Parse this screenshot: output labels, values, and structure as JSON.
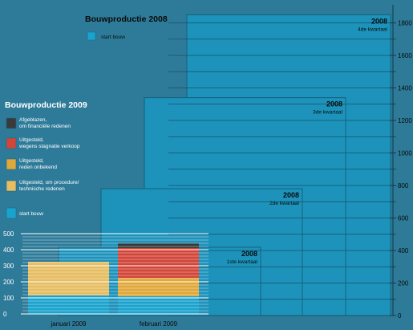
{
  "chart_data": [
    {
      "type": "bar",
      "title": "Bouwproductie 2008",
      "legend": [
        "start bouw"
      ],
      "yticks": [
        "0",
        "200",
        "400",
        "600",
        "800",
        "1000",
        "1200",
        "1400",
        "1600",
        "1800"
      ],
      "ylim": [
        0,
        1850
      ],
      "bars": [
        {
          "year": "2008",
          "quarter": "1ste kwartaal",
          "value": 420
        },
        {
          "year": "2008",
          "quarter": "2de kwartaal",
          "value": 780
        },
        {
          "year": "2008",
          "quarter": "3de kwartaal",
          "value": 1340
        },
        {
          "year": "2008",
          "quarter": "4de kwartaal",
          "value": 1850
        }
      ]
    },
    {
      "type": "bar",
      "stacked": true,
      "title": "Bouwproductie 2009",
      "yticks": [
        "0",
        "100",
        "200",
        "300",
        "400",
        "500"
      ],
      "ylim": [
        0,
        500
      ],
      "categories": [
        "januari 2009",
        "februari 2009"
      ],
      "legend": [
        {
          "line1": "Afgeblazen,",
          "line2": "om financiële redenen",
          "color": "#3a3a3a"
        },
        {
          "line1": "Uitgesteld,",
          "line2": "wegens stagnatie verkoop",
          "color": "#d2463a"
        },
        {
          "line1": "Uitgesteld,",
          "line2": "reden onbekend",
          "color": "#e0a83a"
        },
        {
          "line1": "Uitgesteld, om procedure/",
          "line2": "technische redenen",
          "color": "#e6bd63"
        },
        {
          "line1": "start bouw",
          "line2": "",
          "color": "#1aa3cc"
        }
      ],
      "series": [
        {
          "name": "start bouw",
          "values": [
            115,
            110
          ],
          "color": "#1aa3cc"
        },
        {
          "name": "Uitgesteld, om procedure/technische redenen",
          "values": [
            210,
            0
          ],
          "color": "#e6bd63"
        },
        {
          "name": "Uitgesteld, reden onbekend",
          "values": [
            0,
            115
          ],
          "color": "#e0a83a"
        },
        {
          "name": "Uitgesteld, wegens stagnatie verkoop",
          "values": [
            0,
            185
          ],
          "color": "#d2463a"
        },
        {
          "name": "Afgeblazen, om financiële redenen",
          "values": [
            0,
            30
          ],
          "color": "#3a3a3a"
        }
      ]
    }
  ]
}
